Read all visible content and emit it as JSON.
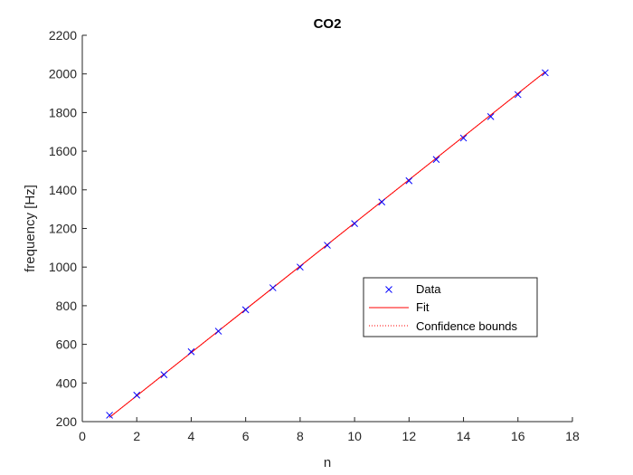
{
  "chart_data": {
    "type": "scatter",
    "title": "CO2",
    "xlabel": "n",
    "ylabel": "frequency [Hz]",
    "xlim": [
      0,
      18
    ],
    "ylim": [
      200,
      2200
    ],
    "xticks": [
      "0",
      "2",
      "4",
      "6",
      "8",
      "10",
      "12",
      "14",
      "16",
      "18"
    ],
    "yticks": [
      "200",
      "400",
      "600",
      "800",
      "1000",
      "1200",
      "1400",
      "1600",
      "1800",
      "2000",
      "2200"
    ],
    "grid": false,
    "legend_position": "center-right",
    "series": [
      {
        "name": "Data",
        "kind": "marker-x",
        "color": "#0000ff",
        "x": [
          1,
          2,
          3,
          4,
          5,
          6,
          7,
          8,
          9,
          10,
          11,
          12,
          13,
          14,
          15,
          16,
          17
        ],
        "y": [
          233,
          337,
          443,
          562,
          668,
          779,
          893,
          1000,
          1113,
          1225,
          1337,
          1447,
          1557,
          1668,
          1779,
          1893,
          2006
        ]
      },
      {
        "name": "Fit",
        "kind": "line",
        "color": "#ff0000",
        "x": [
          1,
          17
        ],
        "y": [
          222,
          2011
        ]
      },
      {
        "name": "Confidence bounds",
        "kind": "dotted-line",
        "color": "#ff0000",
        "x": [
          1,
          17
        ],
        "y": [
          222,
          2011
        ]
      }
    ]
  }
}
